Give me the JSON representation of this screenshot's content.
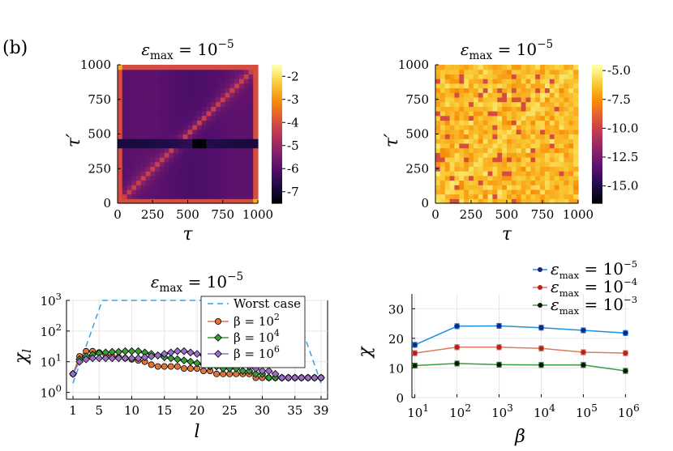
{
  "panel_label": "(b)",
  "chart_data": [
    {
      "type": "heatmap",
      "title_base": "ε",
      "title_sub": "max",
      "title_rhs": " = 10",
      "title_exp": "−5",
      "xlabel": "τ",
      "ylabel": "τ′",
      "xlim": [
        0,
        1000
      ],
      "ylim": [
        0,
        1000
      ],
      "xticks": [
        "0",
        "250",
        "500",
        "750",
        "1000"
      ],
      "yticks": [
        "0",
        "250",
        "500",
        "750",
        "1000"
      ],
      "colorbar_ticks": [
        "-2",
        "-3",
        "-4",
        "-5",
        "-6",
        "-7"
      ],
      "colorbar_range": [
        -7.5,
        -1.5
      ],
      "colormap": [
        "#000004",
        "#1f0c48",
        "#550f6d",
        "#88226a",
        "#ba3655",
        "#e35933",
        "#f98e09",
        "#f9cb35",
        "#fcffa4"
      ]
    },
    {
      "type": "heatmap",
      "title_base": "ε",
      "title_sub": "max",
      "title_rhs": " = 10",
      "title_exp": "−5",
      "xlabel": "τ",
      "ylabel": "τ′",
      "xlim": [
        0,
        1000
      ],
      "ylim": [
        0,
        1000
      ],
      "xticks": [
        "0",
        "250",
        "500",
        "750",
        "1000"
      ],
      "yticks": [
        "0",
        "250",
        "500",
        "750",
        "1000"
      ],
      "colorbar_ticks": [
        "-5.0",
        "-7.5",
        "-10.0",
        "-12.5",
        "-15.0"
      ],
      "colorbar_range": [
        -16.5,
        -4.5
      ]
    },
    {
      "type": "line",
      "scale": "log-y",
      "title_base": "ε",
      "title_sub": "max",
      "title_rhs": " = 10",
      "title_exp": "−5",
      "xlabel": "l",
      "ylabel": "χ",
      "ylabel_sub": "l",
      "xlim": [
        0,
        40
      ],
      "ylim": [
        0.6,
        1000
      ],
      "xticks": [
        "1",
        "5",
        "10",
        "15",
        "20",
        "25",
        "30",
        "35",
        "39"
      ],
      "yticks": [
        {
          "base": "10",
          "exp": "0",
          "value": 1
        },
        {
          "base": "10",
          "exp": "1",
          "value": 10
        },
        {
          "base": "10",
          "exp": "2",
          "value": 100
        },
        {
          "base": "10",
          "exp": "3",
          "value": 1000
        }
      ],
      "worst_case": {
        "name": "Worst case",
        "color": "#3b9fe0"
      },
      "series": [
        {
          "label_base": "β = 10",
          "label_exp": "2",
          "color": "#e0743c",
          "marker": "circle",
          "values": [
            4,
            15,
            22,
            22,
            20,
            17,
            15,
            14,
            13,
            12,
            11,
            10,
            8,
            7,
            7,
            7,
            7,
            6,
            6,
            6,
            5,
            5,
            4,
            4,
            4,
            4,
            4,
            4,
            3,
            3,
            3,
            3,
            3,
            3,
            3,
            3,
            3,
            3,
            3
          ]
        },
        {
          "label_base": "β = 10",
          "label_exp": "4",
          "color": "#3a9d3a",
          "marker": "diamond",
          "values": [
            4,
            12,
            15,
            17,
            19,
            20,
            21,
            21,
            22,
            22,
            22,
            20,
            18,
            16,
            14,
            13,
            12,
            11,
            10,
            9,
            8,
            7,
            7,
            6,
            6,
            6,
            5,
            5,
            4,
            4,
            3,
            3,
            3,
            3,
            3,
            3,
            3,
            3,
            3
          ]
        },
        {
          "label_base": "β = 10",
          "label_exp": "6",
          "color": "#9c6fc9",
          "marker": "diamond",
          "values": [
            4,
            10,
            12,
            13,
            13,
            13,
            13,
            13,
            13,
            13,
            13,
            14,
            15,
            16,
            18,
            20,
            22,
            22,
            20,
            18,
            16,
            14,
            12,
            11,
            10,
            9,
            8,
            7,
            6,
            5,
            5,
            4,
            3,
            3,
            3,
            3,
            3,
            3,
            3
          ]
        }
      ]
    },
    {
      "type": "line",
      "scale": "log-x",
      "xlabel": "β",
      "ylabel": "χ",
      "xlim": [
        0.93,
        6.07
      ],
      "ylim": [
        0,
        35
      ],
      "xticks": [
        {
          "base": "10",
          "exp": "1",
          "value": 1
        },
        {
          "base": "10",
          "exp": "2",
          "value": 2
        },
        {
          "base": "10",
          "exp": "3",
          "value": 3
        },
        {
          "base": "10",
          "exp": "4",
          "value": 4
        },
        {
          "base": "10",
          "exp": "5",
          "value": 5
        },
        {
          "base": "10",
          "exp": "6",
          "value": 6
        }
      ],
      "yticks": [
        "0",
        "10",
        "20",
        "30"
      ],
      "x": [
        1,
        2,
        3,
        4,
        5,
        6
      ],
      "series": [
        {
          "label_base": "ε",
          "label_sub": "max",
          "label_rhs": " = 10",
          "label_exp": "−5",
          "color": "#1a90e0",
          "marker_color": "#1a237e",
          "values": [
            17.8,
            24.1,
            24.2,
            23.6,
            22.7,
            21.8
          ]
        },
        {
          "label_base": "ε",
          "label_sub": "max",
          "label_rhs": " = 10",
          "label_exp": "−4",
          "color": "#e07a58",
          "marker_color": "#b22222",
          "values": [
            15,
            17,
            17,
            16.6,
            15.3,
            15
          ]
        },
        {
          "label_base": "ε",
          "label_sub": "max",
          "label_rhs": " = 10",
          "label_exp": "−3",
          "color": "#3a9d3a",
          "marker_color": "#111111",
          "values": [
            10.8,
            11.5,
            11.1,
            11.0,
            11.0,
            9.0
          ]
        }
      ]
    }
  ]
}
